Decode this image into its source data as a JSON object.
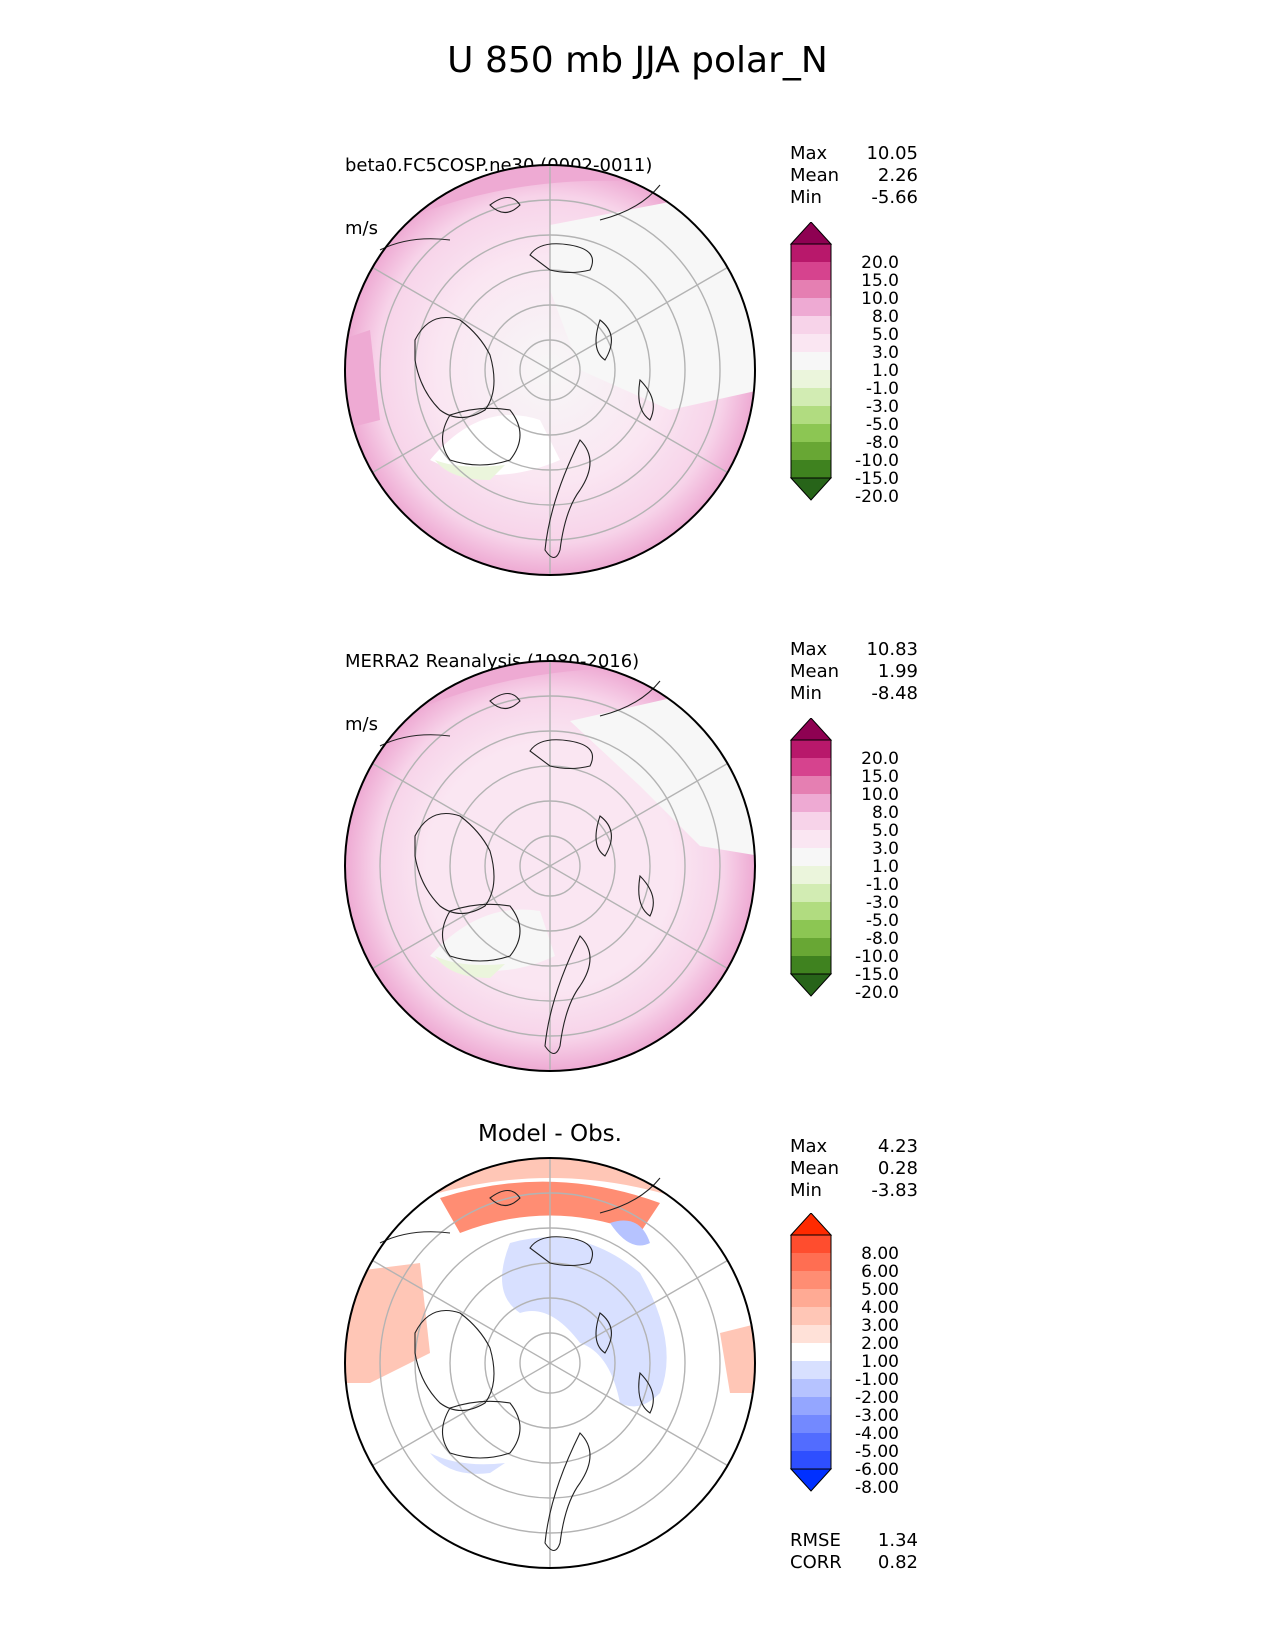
{
  "page": {
    "title": "U 850 mb JJA polar_N"
  },
  "panels": [
    {
      "title": "beta0.FC5COSP.ne30 (0002-0011)",
      "units": "m/s",
      "stats": [
        {
          "label": "Max",
          "value": "10.05"
        },
        {
          "label": "Mean",
          "value": "2.26"
        },
        {
          "label": "Min",
          "value": "-5.66"
        }
      ]
    },
    {
      "title": "MERRA2 Reanalysis (1980-2016)",
      "units": "m/s",
      "stats": [
        {
          "label": "Max",
          "value": "10.83"
        },
        {
          "label": "Mean",
          "value": "1.99"
        },
        {
          "label": "Min",
          "value": "-8.48"
        }
      ]
    },
    {
      "title": "Model - Obs.",
      "stats": [
        {
          "label": "Max",
          "value": "4.23"
        },
        {
          "label": "Mean",
          "value": "0.28"
        },
        {
          "label": "Min",
          "value": "-3.83"
        }
      ],
      "metrics": [
        {
          "label": "RMSE",
          "value": "1.34"
        },
        {
          "label": "CORR",
          "value": "0.82"
        }
      ]
    }
  ],
  "colorbars": {
    "wind": {
      "labels": [
        "20.0",
        "15.0",
        "10.0",
        "8.0",
        "5.0",
        "3.0",
        "1.0",
        "-1.0",
        "-3.0",
        "-5.0",
        "-8.0",
        "-10.0",
        "-15.0",
        "-20.0"
      ],
      "colors": [
        "#8e0152",
        "#b8186b",
        "#d6438e",
        "#e57fb2",
        "#eeaad3",
        "#f7d3e9",
        "#fae6f2",
        "#f7f7f7",
        "#ebf5dc",
        "#d2ecb3",
        "#b1dc80",
        "#8cc653",
        "#68a734",
        "#3f821f",
        "#276419"
      ]
    },
    "diff": {
      "labels": [
        "8.00",
        "6.00",
        "5.00",
        "4.00",
        "3.00",
        "2.00",
        "1.00",
        "-1.00",
        "-2.00",
        "-3.00",
        "-4.00",
        "-5.00",
        "-6.00",
        "-8.00"
      ],
      "colors": [
        "#ff2a00",
        "#ff4d2e",
        "#ff6e52",
        "#ff8d73",
        "#ffaa94",
        "#ffc6b6",
        "#ffe1d8",
        "#ffffff",
        "#d8e0ff",
        "#b6c3ff",
        "#94a6ff",
        "#7389ff",
        "#526cff",
        "#2e4fff",
        "#0030ff"
      ]
    }
  }
}
